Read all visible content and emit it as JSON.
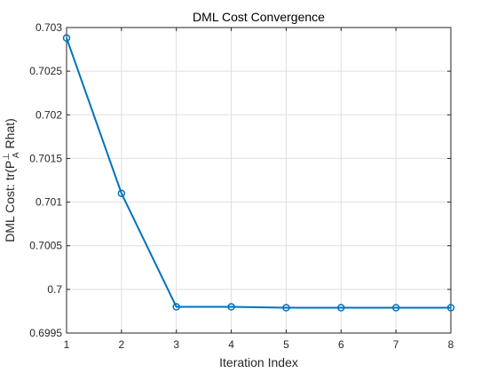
{
  "chart_data": {
    "type": "line",
    "title": "DML Cost Convergence",
    "xlabel": "Iteration Index",
    "ylabel": {
      "main": "DML Cost: tr(P",
      "superscript": "⊥",
      "subscript": "A",
      "rest": " Rhat)"
    },
    "xlim": [
      1,
      8
    ],
    "ylim": [
      0.6995,
      0.703
    ],
    "xticks": [
      1,
      2,
      3,
      4,
      5,
      6,
      7,
      8
    ],
    "xtick_labels": [
      "1",
      "2",
      "3",
      "4",
      "5",
      "6",
      "7",
      "8"
    ],
    "yticks": [
      0.6995,
      0.7,
      0.7005,
      0.701,
      0.7015,
      0.702,
      0.7025,
      0.703
    ],
    "ytick_labels": [
      "0.6995",
      "0.7",
      "0.7005",
      "0.701",
      "0.7015",
      "0.702",
      "0.7025",
      "0.703"
    ],
    "grid": true,
    "series": [
      {
        "x": [
          1,
          2,
          3,
          4,
          5,
          6,
          7,
          8
        ],
        "values": [
          0.70288,
          0.7011,
          0.6998,
          0.6998,
          0.69979,
          0.69979,
          0.69979,
          0.69979
        ],
        "color": "#0072BD",
        "marker": "circle"
      }
    ]
  }
}
